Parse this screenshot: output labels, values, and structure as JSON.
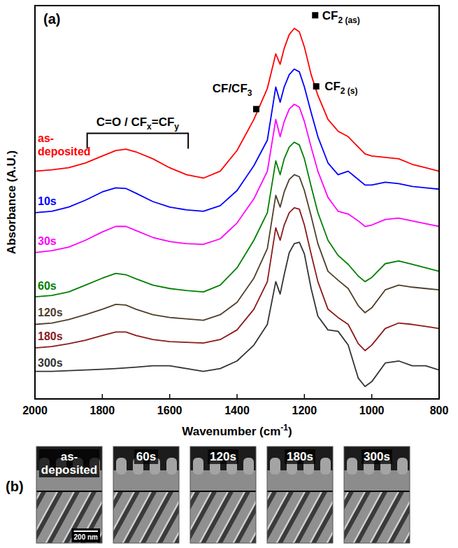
{
  "chart_data": {
    "type": "line",
    "title": "(a)",
    "x_label": {
      "parts": [
        {
          "text": "Wavenumber (cm"
        },
        {
          "text": "-1",
          "sup": true
        },
        {
          "text": ")"
        }
      ]
    },
    "y_label": "Absorbance (A.U.)",
    "x": [
      2000,
      1950,
      1900,
      1850,
      1800,
      1760,
      1730,
      1700,
      1650,
      1600,
      1550,
      1500,
      1450,
      1400,
      1350,
      1310,
      1285,
      1272,
      1260,
      1245,
      1230,
      1215,
      1200,
      1180,
      1160,
      1130,
      1100,
      1070,
      1040,
      1020,
      1000,
      960,
      920,
      880,
      840,
      800
    ],
    "xlim": [
      2000,
      800
    ],
    "xticks": [
      2000,
      1800,
      1600,
      1400,
      1200,
      1000,
      800
    ],
    "ylim": [
      0,
      570
    ],
    "tick_labels": "x",
    "grid": false,
    "series": [
      {
        "name": "as-deposited",
        "color": "#ff0000",
        "values": [
          330,
          332,
          335,
          342,
          352,
          360,
          362,
          358,
          348,
          335,
          325,
          320,
          330,
          360,
          405,
          450,
          500,
          485,
          508,
          528,
          537,
          532,
          510,
          470,
          440,
          405,
          388,
          380,
          365,
          355,
          352,
          350,
          348,
          340,
          335,
          330
        ]
      },
      {
        "name": "10s",
        "color": "#0000ff",
        "values": [
          270,
          272,
          278,
          288,
          300,
          306,
          305,
          298,
          286,
          278,
          274,
          272,
          280,
          302,
          338,
          375,
          452,
          430,
          452,
          470,
          478,
          474,
          452,
          415,
          380,
          342,
          325,
          330,
          318,
          310,
          310,
          314,
          312,
          308,
          306,
          304
        ]
      },
      {
        "name": "30s",
        "color": "#ff00ff",
        "values": [
          212,
          215,
          220,
          230,
          242,
          250,
          250,
          244,
          234,
          228,
          225,
          224,
          232,
          255,
          290,
          330,
          405,
          380,
          402,
          420,
          427,
          423,
          402,
          365,
          330,
          292,
          272,
          268,
          258,
          250,
          252,
          260,
          262,
          258,
          254,
          250
        ]
      },
      {
        "name": "60s",
        "color": "#008000",
        "values": [
          148,
          150,
          155,
          165,
          175,
          182,
          180,
          174,
          165,
          160,
          157,
          155,
          165,
          190,
          230,
          270,
          345,
          325,
          348,
          365,
          372,
          368,
          348,
          308,
          270,
          230,
          208,
          195,
          178,
          170,
          176,
          196,
          200,
          195,
          190,
          185
        ]
      },
      {
        "name": "120s",
        "color": "#4f3f2a",
        "values": [
          108,
          110,
          115,
          122,
          130,
          137,
          136,
          130,
          122,
          118,
          116,
          114,
          122,
          140,
          175,
          218,
          295,
          278,
          300,
          318,
          325,
          322,
          302,
          265,
          225,
          185,
          172,
          160,
          135,
          125,
          132,
          158,
          165,
          162,
          160,
          158
        ]
      },
      {
        "name": "180s",
        "color": "#8b1a1a",
        "values": [
          74,
          76,
          80,
          85,
          92,
          97,
          97,
          92,
          86,
          83,
          82,
          81,
          86,
          100,
          130,
          170,
          248,
          230,
          252,
          270,
          277,
          275,
          252,
          210,
          170,
          130,
          118,
          108,
          80,
          70,
          78,
          102,
          110,
          108,
          105,
          102
        ]
      },
      {
        "name": "300s",
        "color": "#333333",
        "values": [
          40,
          40,
          41,
          42,
          43,
          44,
          45,
          46,
          48,
          48,
          44,
          40,
          44,
          55,
          78,
          108,
          170,
          152,
          180,
          212,
          225,
          227,
          210,
          160,
          120,
          100,
          98,
          78,
          30,
          18,
          25,
          52,
          55,
          48,
          48,
          42
        ]
      }
    ],
    "annotations": [
      {
        "parts": [
          {
            "text": "C=O / CF"
          },
          {
            "text": "x",
            "sub": true
          },
          {
            "text": "=CF"
          },
          {
            "text": "y",
            "sub": true
          }
        ],
        "x_range": [
          1845,
          1545
        ],
        "y": 385
      },
      {
        "parts": [
          {
            "text": "CF/CF"
          },
          {
            "text": "3",
            "sub": true
          }
        ],
        "x": 1343,
        "y": 420,
        "marker": "square"
      },
      {
        "parts": [
          {
            "text": "CF"
          },
          {
            "text": "2 (as)",
            "sub": true
          }
        ],
        "x": 1168,
        "y": 556,
        "marker": "square"
      },
      {
        "parts": [
          {
            "text": "CF"
          },
          {
            "text": "2 (s)",
            "sub": true
          }
        ],
        "x": 1165,
        "y": 453,
        "marker": "square"
      }
    ]
  },
  "panel_b": {
    "label": "(b)",
    "images": [
      {
        "label": "as-deposited"
      },
      {
        "label": "60s"
      },
      {
        "label": "120s"
      },
      {
        "label": "180s"
      },
      {
        "label": "300s"
      }
    ],
    "scale_bar": "200 nm"
  }
}
